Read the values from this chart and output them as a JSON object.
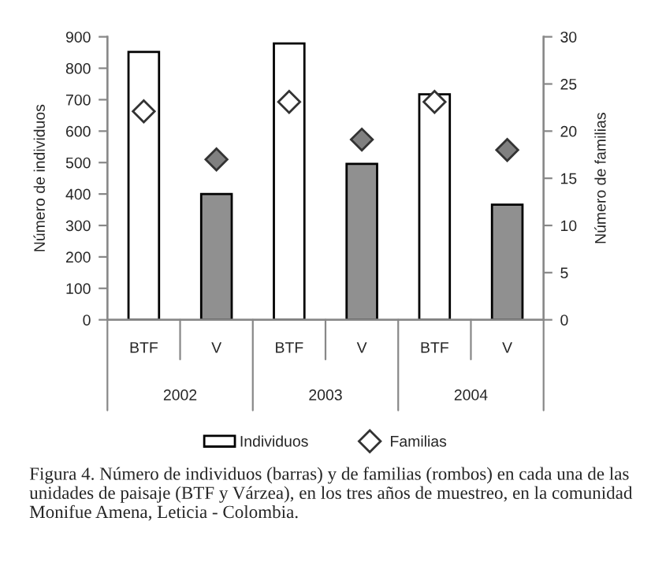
{
  "chart_data": {
    "type": "bar",
    "categories": [
      "BTF",
      "V",
      "BTF",
      "V",
      "BTF",
      "V"
    ],
    "ylabel": "Número de individuos",
    "y2label": "Número de familias",
    "series": [
      {
        "name": "Individuos",
        "colors": [
          "#ffffff",
          "#909090",
          "#ffffff",
          "#909090",
          "#ffffff",
          "#909090"
        ],
        "values": [
          852,
          400,
          879,
          496,
          717,
          366
        ]
      },
      {
        "name": "Familias",
        "type": "scatter",
        "axis": "y2",
        "marker": "diamond",
        "colors": [
          "#ffffff",
          "#808080",
          "#ffffff",
          "#808080",
          "#ffffff",
          "#808080"
        ],
        "values": [
          22.1,
          17.0,
          23.1,
          19.1,
          23.1,
          18.0
        ]
      }
    ],
    "ylim": [
      0,
      900
    ],
    "yticks": [
      0,
      100,
      200,
      300,
      400,
      500,
      600,
      700,
      800,
      900
    ],
    "y2lim": [
      0,
      30
    ],
    "y2ticks": [
      0,
      5,
      10,
      15,
      20,
      25,
      30
    ],
    "grid": false,
    "legend": "bottom",
    "annotations": [
      "2002",
      "2003",
      "2004",
      "Figura 4. Número de individuos (barras) y de familias (rombos) en cada una de las unidades de paisaje (BTF y Várzea), en los tres años de muestreo, en la comunidad Monifue Amena, Leticia - Colombia."
    ]
  }
}
